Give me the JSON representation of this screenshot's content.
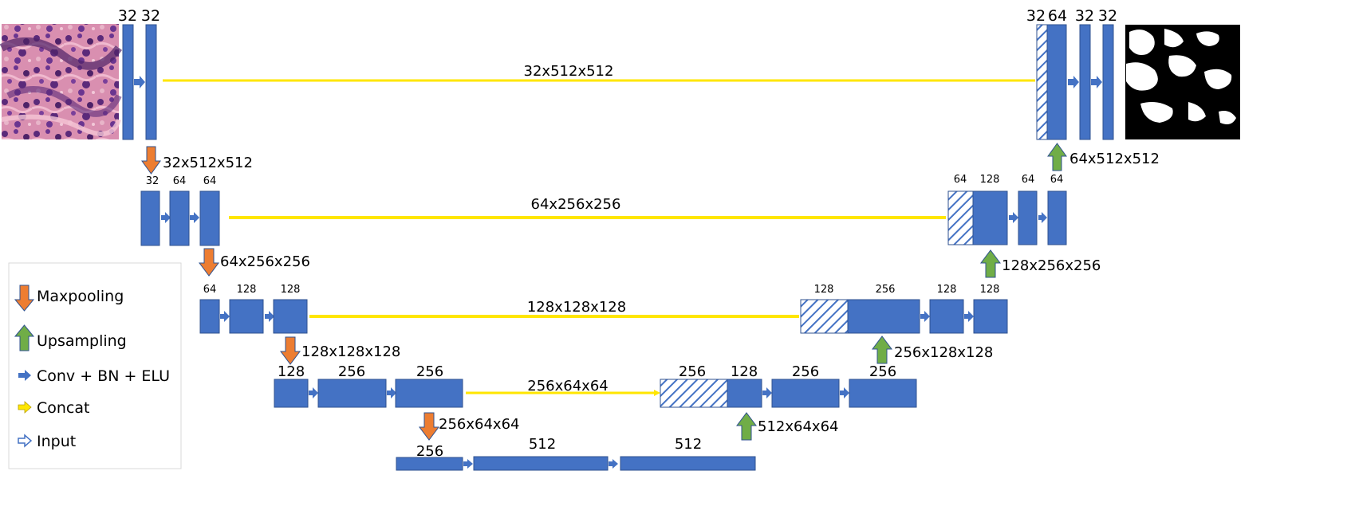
{
  "legend": {
    "maxpooling": "Maxpooling",
    "upsampling": "Upsampling",
    "conv": "Conv + BN + ELU",
    "concat": "Concat",
    "input": "Input"
  },
  "colors": {
    "block": "#4472C4",
    "block_stroke": "#2F528F",
    "maxpool_arrow": "#ED7D31",
    "upsample_arrow": "#70AD47",
    "concat_line": "#FFE600",
    "conv_arrow": "#4472C4"
  },
  "images": {
    "input": "histology-tissue-image",
    "output": "binary-segmentation-mask"
  },
  "levels": {
    "l1": {
      "enc": [
        "32",
        "32"
      ],
      "dec": [
        "32",
        "64",
        "32",
        "32"
      ],
      "skip": "32x512x512",
      "pool": "32x512x512",
      "up": "64x512x512"
    },
    "l2": {
      "enc": [
        "32",
        "64",
        "64"
      ],
      "dec": [
        "64",
        "128",
        "64",
        "64"
      ],
      "skip": "64x256x256",
      "pool": "64x256x256",
      "up": "128x256x256"
    },
    "l3": {
      "enc": [
        "64",
        "128",
        "128"
      ],
      "dec": [
        "128",
        "256",
        "128",
        "128"
      ],
      "skip": "128x128x128",
      "pool": "128x128x128",
      "up": "256x128x128"
    },
    "l4": {
      "enc": [
        "128",
        "256",
        "256"
      ],
      "dec": [
        "256",
        "128",
        "256",
        "256"
      ],
      "skip": "256x64x64",
      "pool": "256x64x64",
      "up": "512x64x64"
    },
    "l5": {
      "bottom": [
        "256",
        "512",
        "512"
      ]
    }
  }
}
